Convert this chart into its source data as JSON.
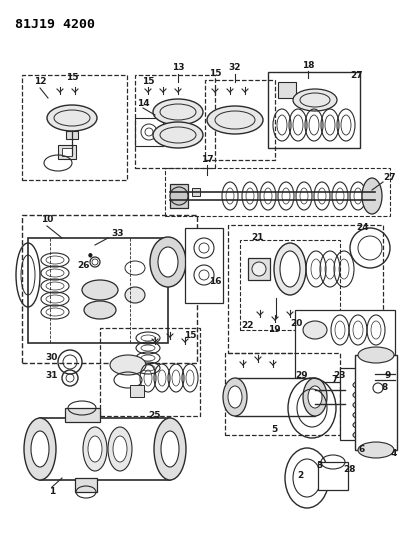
{
  "title": "81J19 4200",
  "bg_color": "#ffffff",
  "fig_width": 4.06,
  "fig_height": 5.33,
  "dpi": 100,
  "line_color": "#2a2a2a",
  "label_color": "#1a1a1a"
}
